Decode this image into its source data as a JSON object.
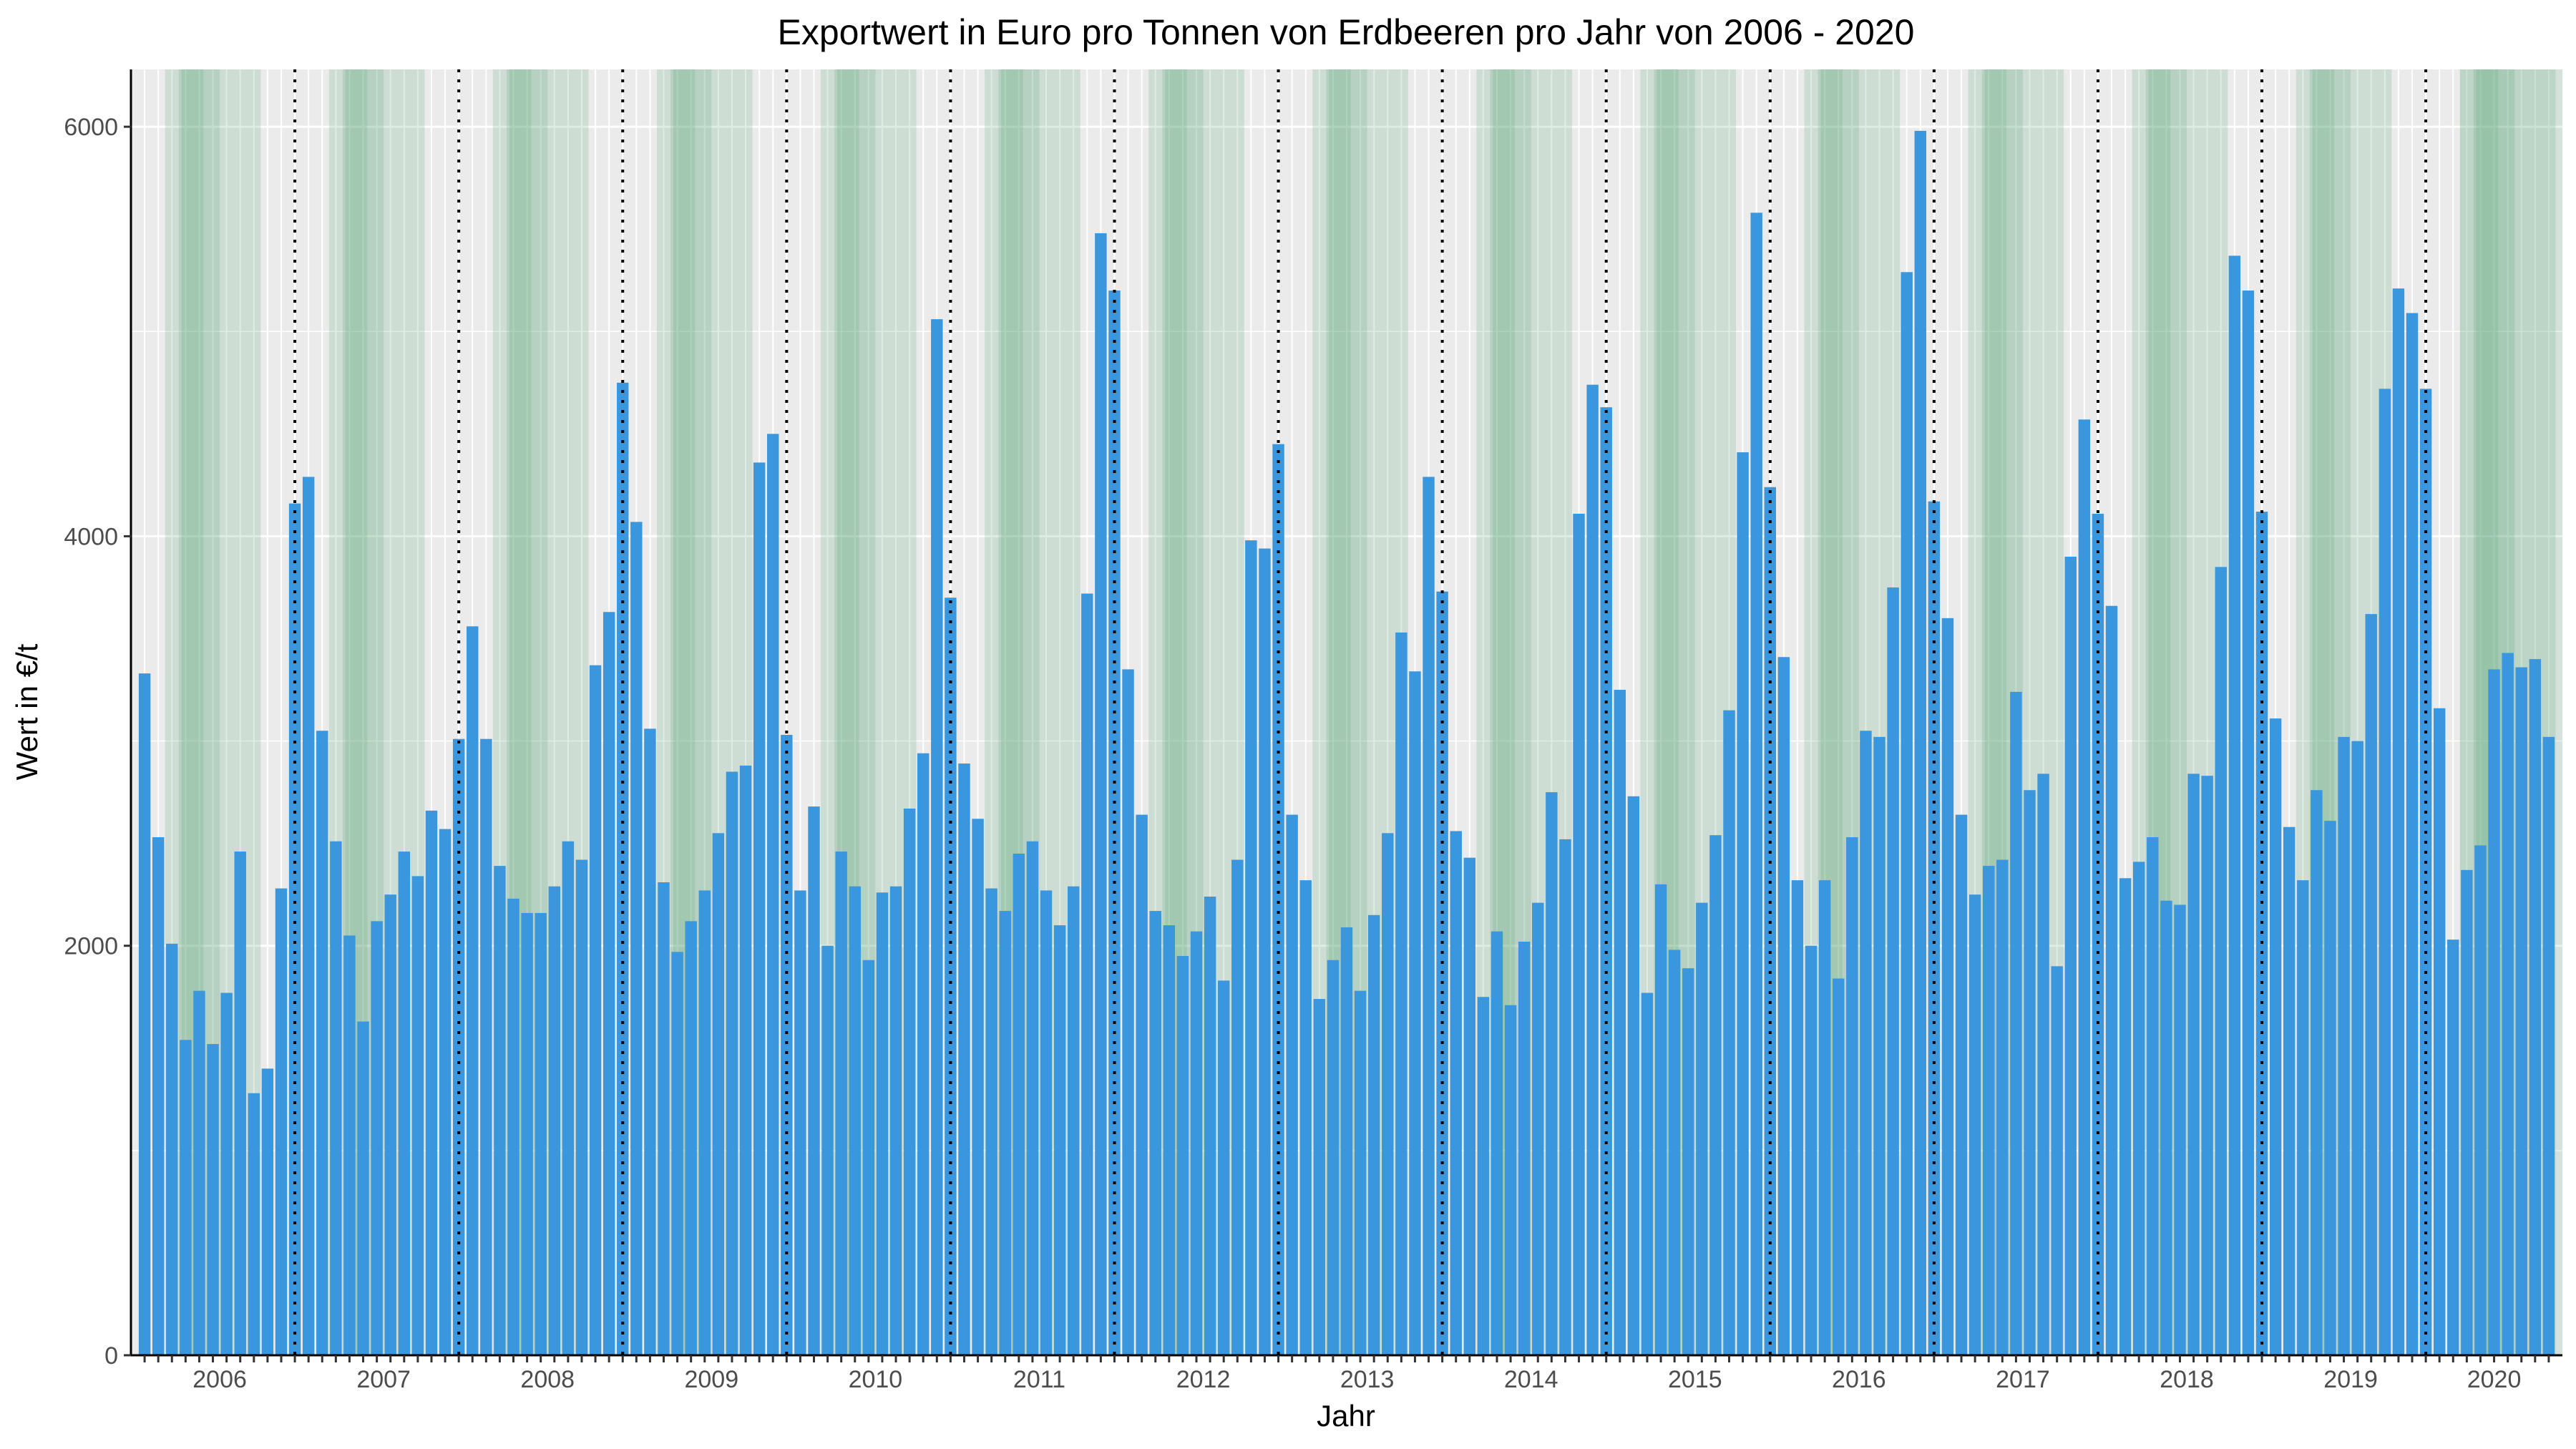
{
  "chart_data": {
    "type": "bar",
    "title": "Exportwert in Euro pro Tonnen von Erdbeeren pro Jahr von 2006 - 2020",
    "xlabel": "Jahr",
    "ylabel": "Wert in €/t",
    "ylim": [
      0,
      6280
    ],
    "yticks": [
      0,
      2000,
      4000,
      6000
    ],
    "years": [
      "2006",
      "2007",
      "2008",
      "2009",
      "2010",
      "2011",
      "2012",
      "2013",
      "2014",
      "2015",
      "2016",
      "2017",
      "2018",
      "2019",
      "2020"
    ],
    "start": "2006-01",
    "values": [
      3330,
      2530,
      2010,
      1540,
      1780,
      1520,
      1770,
      2460,
      1280,
      1400,
      2280,
      4160,
      4290,
      3050,
      2510,
      2050,
      1630,
      2120,
      2250,
      2460,
      2340,
      2660,
      2570,
      3010,
      3560,
      3010,
      2390,
      2230,
      2160,
      2160,
      2290,
      2510,
      2420,
      3370,
      3630,
      4750,
      4070,
      3060,
      2310,
      1970,
      2120,
      2270,
      2550,
      2850,
      2880,
      4360,
      4500,
      3030,
      2270,
      2680,
      2000,
      2460,
      2290,
      1930,
      2260,
      2290,
      2670,
      2940,
      5060,
      3700,
      2890,
      2620,
      2280,
      2170,
      2450,
      2510,
      2270,
      2100,
      2290,
      3720,
      5480,
      5200,
      3350,
      2640,
      2170,
      2100,
      1950,
      2070,
      2240,
      1830,
      2420,
      3980,
      3940,
      4450,
      2640,
      2320,
      1740,
      1930,
      2090,
      1780,
      2150,
      2550,
      3530,
      3340,
      4290,
      3730,
      2560,
      2430,
      1750,
      2070,
      1710,
      2020,
      2210,
      2750,
      2520,
      4110,
      4740,
      4630,
      3250,
      2730,
      1770,
      2300,
      1980,
      1890,
      2210,
      2540,
      3150,
      4410,
      5580,
      4240,
      3410,
      2320,
      2000,
      2320,
      1840,
      2530,
      3050,
      3020,
      3750,
      5290,
      5980,
      4170,
      3600,
      2640,
      2250,
      2390,
      2420,
      3240,
      2760,
      2840,
      1900,
      3900,
      4570,
      4110,
      3660,
      2330,
      2410,
      2530,
      2220,
      2200,
      2840,
      2830,
      3850,
      5370,
      5200,
      4120,
      3110,
      2580,
      2320,
      2760,
      2610,
      3020,
      3000,
      3620,
      4720,
      5210,
      5090,
      4720,
      3160,
      2030,
      2370,
      2490,
      3350,
      3430,
      3360,
      3400,
      3020
    ],
    "legend": "none",
    "grid": true,
    "colors": {
      "bar": "#3a96dd",
      "panel": "#ebebeb",
      "grid": "#ffffff",
      "season": "#5aa57a",
      "year_separator": "#000000"
    }
  }
}
